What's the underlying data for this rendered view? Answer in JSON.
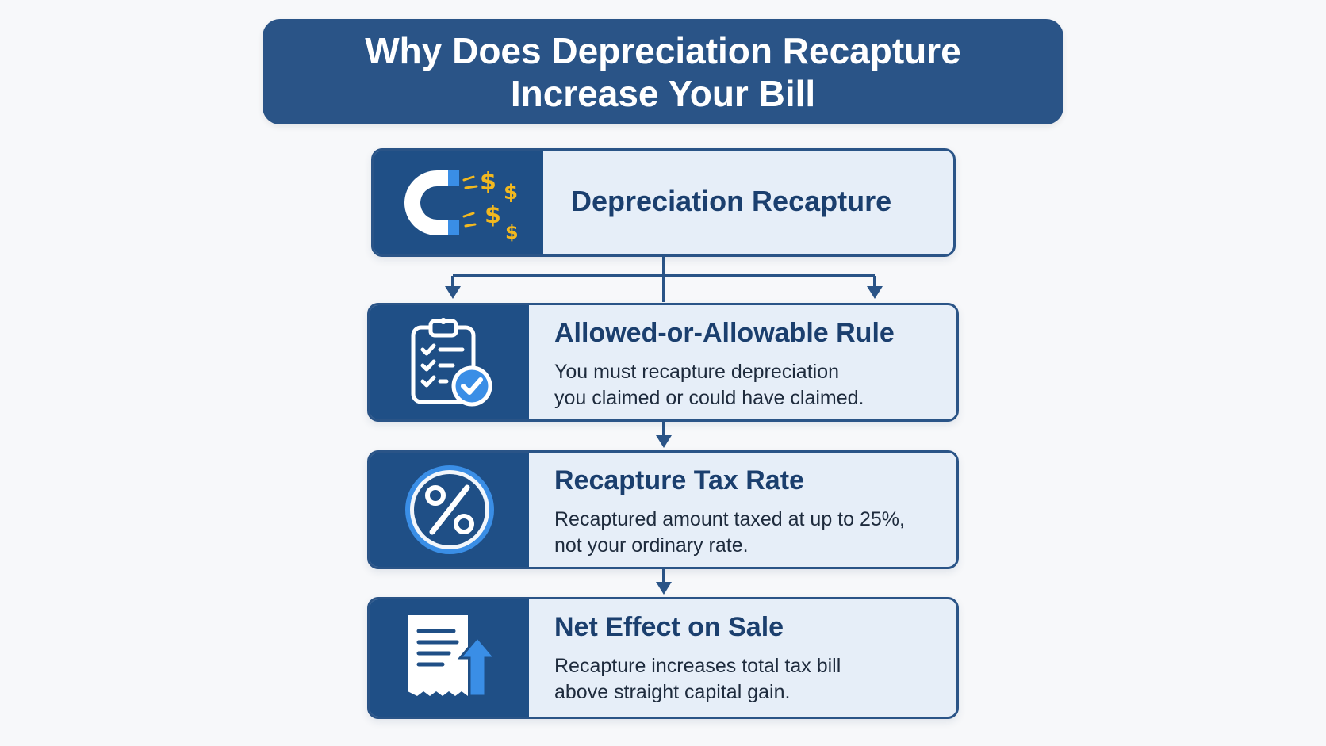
{
  "title": {
    "line1": "Why Does Depreciation Recapture",
    "line2": "Increase Your Bill"
  },
  "top_box": {
    "heading": "Depreciation Recapture",
    "icon": "magnet-with-dollar-signs-icon"
  },
  "steps": [
    {
      "heading": "Allowed-or-Allowable Rule",
      "line1": "You must recapture depreciation",
      "line2": "you claimed or could have claimed.",
      "icon": "clipboard-checklist-icon"
    },
    {
      "heading": "Recapture Tax Rate",
      "line1": "Recaptured amount taxed at up to 25%,",
      "line2": "not your ordinary rate.",
      "icon": "percent-circle-icon"
    },
    {
      "heading": "Net Effect on Sale",
      "line1": "Recapture increases total tax bill",
      "line2": "above straight capital gain.",
      "icon": "receipt-up-arrow-icon"
    }
  ],
  "colors": {
    "navy": "#2a5487",
    "panel": "#1f4f86",
    "box_fill": "#e6eef8",
    "accent_blue": "#3a8ee6",
    "gold": "#f2b81f"
  }
}
